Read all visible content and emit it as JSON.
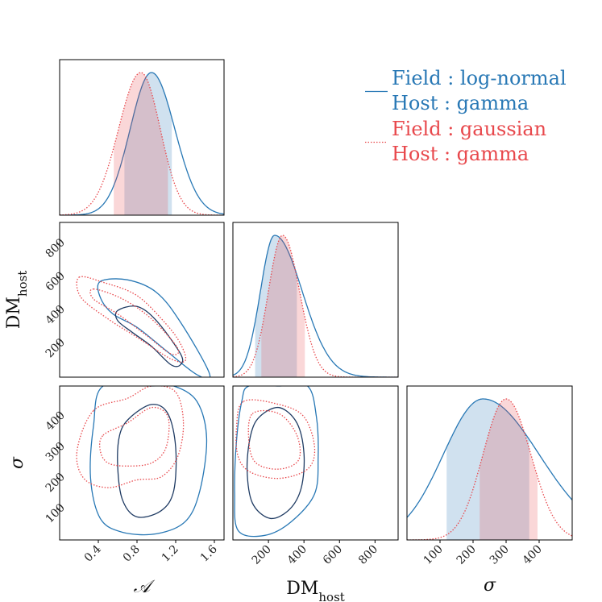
{
  "chart_data": {
    "type": "corner",
    "parameters": [
      {
        "name": "A",
        "label": "𝒜",
        "range": [
          0.0,
          1.7
        ],
        "ticks": [
          0.4,
          0.8,
          1.2,
          1.6
        ],
        "tick_labels": [
          "0.4",
          "0.8",
          "1.2",
          "1.6"
        ]
      },
      {
        "name": "DM_host",
        "label": "DM",
        "label_sub": "host",
        "range": [
          0,
          930
        ],
        "ticks": [
          200,
          400,
          600,
          800
        ],
        "tick_labels": [
          "200",
          "400",
          "600",
          "800"
        ]
      },
      {
        "name": "sigma",
        "label": "σ",
        "range": [
          0,
          500
        ],
        "ticks": [
          100,
          200,
          300,
          400
        ],
        "tick_labels": [
          "100",
          "200",
          "300",
          "400"
        ]
      }
    ],
    "series": [
      {
        "name": "Field: log-normal / Host: gamma",
        "legend_line1": "Field :  log-normal",
        "legend_line2": "Host :  gamma",
        "color": "#2878b5",
        "dark_color": "#1f3b63",
        "style": "solid",
        "marginals": [
          {
            "peak": 0.95,
            "sigma_left": 0.22,
            "sigma_right": 0.24,
            "band": [
              0.67,
              1.16
            ]
          },
          {
            "peak": 235,
            "sigma_left": 80,
            "sigma_right": 155,
            "band": [
              125,
              360
            ]
          },
          {
            "peak": 230,
            "sigma_left": 120,
            "sigma_right": 170,
            "band": [
              120,
              370
            ]
          }
        ],
        "contours": {
          "A_DM": {
            "outer": [
              [
                0.42,
                575
              ],
              [
                0.7,
                585
              ],
              [
                1.0,
                510
              ],
              [
                1.25,
                330
              ],
              [
                1.55,
                20
              ],
              [
                1.42,
                15
              ],
              [
                1.1,
                160
              ],
              [
                0.8,
                300
              ],
              [
                0.55,
                380
              ],
              [
                0.42,
                480
              ]
            ],
            "inner": [
              [
                0.6,
                400
              ],
              [
                0.8,
                425
              ],
              [
                1.0,
                340
              ],
              [
                1.25,
                140
              ],
              [
                1.25,
                75
              ],
              [
                1.15,
                75
              ],
              [
                0.95,
                185
              ],
              [
                0.75,
                270
              ],
              [
                0.6,
                340
              ]
            ]
          },
          "A_sigma": {
            "outer": [
              [
                0.45,
                500
              ],
              [
                0.95,
                500
              ],
              [
                1.18,
                500
              ],
              [
                1.42,
                450
              ],
              [
                1.52,
                330
              ],
              [
                1.45,
                160
              ],
              [
                1.3,
                60
              ],
              [
                1.0,
                20
              ],
              [
                0.65,
                25
              ],
              [
                0.42,
                70
              ],
              [
                0.32,
                200
              ],
              [
                0.35,
                370
              ]
            ],
            "inner": [
              [
                0.72,
                395
              ],
              [
                0.95,
                440
              ],
              [
                1.12,
                410
              ],
              [
                1.2,
                300
              ],
              [
                1.18,
                160
              ],
              [
                1.05,
                95
              ],
              [
                0.8,
                75
              ],
              [
                0.65,
                130
              ],
              [
                0.6,
                240
              ],
              [
                0.62,
                340
              ]
            ]
          },
          "DM_sigma": {
            "outer": [
              [
                90,
                500
              ],
              [
                260,
                500
              ],
              [
                420,
                500
              ],
              [
                470,
                400
              ],
              [
                480,
                270
              ],
              [
                460,
                150
              ],
              [
                330,
                60
              ],
              [
                180,
                15
              ],
              [
                30,
                30
              ],
              [
                10,
                150
              ],
              [
                20,
                320
              ],
              [
                50,
                450
              ]
            ],
            "inner": [
              [
                150,
                400
              ],
              [
                260,
                430
              ],
              [
                360,
                380
              ],
              [
                400,
                280
              ],
              [
                385,
                170
              ],
              [
                320,
                100
              ],
              [
                210,
                70
              ],
              [
                110,
                120
              ],
              [
                80,
                230
              ],
              [
                100,
                340
              ]
            ]
          }
        }
      },
      {
        "name": "Field: gaussian / Host: gamma",
        "legend_line1": "Field :  gaussian",
        "legend_line2": "Host :  gamma",
        "color": "#e8484c",
        "dark_color": "#e8484c",
        "style": "dotted",
        "marginals": [
          {
            "peak": 0.84,
            "sigma_left": 0.23,
            "sigma_right": 0.2,
            "band": [
              0.56,
              1.12
            ]
          },
          {
            "peak": 280,
            "sigma_left": 80,
            "sigma_right": 95,
            "band": [
              160,
              405
            ]
          },
          {
            "peak": 300,
            "sigma_left": 70,
            "sigma_right": 75,
            "band": [
              220,
              395
            ]
          }
        ],
        "contours": {
          "A_DM": {
            "outer": [
              [
                0.2,
                600
              ],
              [
                0.45,
                570
              ],
              [
                0.8,
                490
              ],
              [
                1.1,
                320
              ],
              [
                1.25,
                200
              ],
              [
                1.3,
                100
              ],
              [
                1.15,
                110
              ],
              [
                0.8,
                240
              ],
              [
                0.5,
                350
              ],
              [
                0.22,
                480
              ]
            ],
            "inner": [
              [
                0.35,
                530
              ],
              [
                0.65,
                470
              ],
              [
                0.95,
                350
              ],
              [
                1.22,
                175
              ],
              [
                1.15,
                140
              ],
              [
                0.9,
                250
              ],
              [
                0.6,
                380
              ],
              [
                0.35,
                470
              ]
            ]
          },
          "A_sigma": {
            "outer": [
              [
                0.35,
                420
              ],
              [
                0.7,
                460
              ],
              [
                0.95,
                500
              ],
              [
                1.2,
                480
              ],
              [
                1.28,
                380
              ],
              [
                1.22,
                270
              ],
              [
                1.05,
                205
              ],
              [
                0.8,
                195
              ],
              [
                0.5,
                170
              ],
              [
                0.25,
                200
              ],
              [
                0.18,
                290
              ]
            ],
            "inner": [
              [
                0.45,
                340
              ],
              [
                0.7,
                380
              ],
              [
                0.95,
                430
              ],
              [
                1.12,
                400
              ],
              [
                1.1,
                300
              ],
              [
                0.95,
                250
              ],
              [
                0.7,
                240
              ],
              [
                0.5,
                250
              ],
              [
                0.42,
                290
              ]
            ]
          },
          "DM_sigma": {
            "outer": [
              [
                60,
                450
              ],
              [
                260,
                440
              ],
              [
                400,
                400
              ],
              [
                460,
                300
              ],
              [
                420,
                230
              ],
              [
                260,
                200
              ],
              [
                100,
                220
              ],
              [
                30,
                270
              ],
              [
                20,
                360
              ]
            ],
            "inner": [
              [
                110,
                410
              ],
              [
                260,
                410
              ],
              [
                360,
                340
              ],
              [
                370,
                260
              ],
              [
                260,
                230
              ],
              [
                130,
                250
              ],
              [
                90,
                320
              ]
            ]
          }
        }
      }
    ]
  }
}
